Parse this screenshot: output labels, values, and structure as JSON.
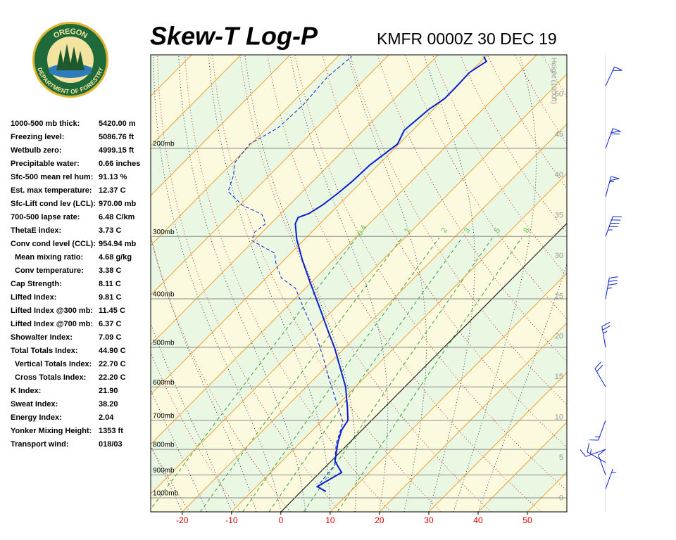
{
  "logo": {
    "top": "OREGON",
    "bottom": "DEPARTMENT OF FORESTRY"
  },
  "indices": [
    {
      "label": "1000-500 mb thick:",
      "value": "5420.00 m"
    },
    {
      "label": "Freezing level:",
      "value": "5086.76 ft"
    },
    {
      "label": "Wetbulb zero:",
      "value": "4999.15 ft"
    },
    {
      "label": "Precipitable water:",
      "value": "0.66 inches"
    },
    {
      "label": "Sfc-500 mean rel hum:",
      "value": "91.13 %"
    },
    {
      "label": "Est. max temperature:",
      "value": "12.37 C"
    },
    {
      "label": "Sfc-Lift cond lev (LCL):",
      "value": "970.00 mb"
    },
    {
      "label": "700-500 lapse rate:",
      "value": "6.48 C/km"
    },
    {
      "label": "ThetaE index:",
      "value": "3.73 C"
    },
    {
      "label": "Conv cond level (CCL):",
      "value": "954.94 mb",
      "sub": [
        {
          "label": "Mean mixing ratio:",
          "value": "4.68 g/kg"
        },
        {
          "label": "Conv temperature:",
          "value": "3.38 C"
        }
      ]
    },
    {
      "label": "Cap Strength:",
      "value": "8.11 C"
    },
    {
      "label": "Lifted Index:",
      "value": "9.81 C"
    },
    {
      "label": "Lifted Index @300 mb:",
      "value": "11.45 C"
    },
    {
      "label": "Lifted Index @700 mb:",
      "value": "6.37 C"
    },
    {
      "label": "Showalter Index:",
      "value": "7.09 C"
    },
    {
      "label": "Total Totals Index:",
      "value": "44.90 C",
      "sub": [
        {
          "label": "Vertical Totals Index:",
          "value": "22.70 C"
        },
        {
          "label": "Cross Totals Index:",
          "value": "22.20 C"
        }
      ]
    },
    {
      "label": "K Index:",
      "value": "21.90"
    },
    {
      "label": "Sweat Index:",
      "value": "38.20"
    },
    {
      "label": "Energy Index:",
      "value": "2.04"
    },
    {
      "label": "Yonker Mixing Height:",
      "value": "1353 ft"
    },
    {
      "label": "Transport wind:",
      "value": "018/03"
    }
  ],
  "chart_data": {
    "type": "skewt",
    "title": "Skew-T Log-P",
    "subtitle": "KMFR 0000Z 30 DEC 19",
    "xlim": [
      -26.4,
      58
    ],
    "xticks": [
      -20,
      -10,
      0,
      10,
      20,
      30,
      40,
      50
    ],
    "ylim": [
      1067,
      130
    ],
    "yticks": [
      {
        "value": 200,
        "label": "200mb"
      },
      {
        "value": 300,
        "label": "300mb"
      },
      {
        "value": 400,
        "label": "400mb"
      },
      {
        "value": 500,
        "label": "500mb"
      },
      {
        "value": 600,
        "label": "600mb"
      },
      {
        "value": 700,
        "label": "700mb"
      },
      {
        "value": 800,
        "label": "800mb"
      },
      {
        "value": 900,
        "label": "900mb"
      },
      {
        "value": 1000,
        "label": "1000mb"
      }
    ],
    "y2label": "Height (1000ft)",
    "y2lim": [
      -1.7,
      54.9
    ],
    "y2ticks": [
      0,
      5,
      10,
      15,
      20,
      25,
      30,
      35,
      40,
      45,
      50
    ],
    "mixing_ratios": [
      0.4,
      1,
      2,
      3,
      5,
      8
    ],
    "profiles": [
      {
        "color": "#0a1fd0",
        "dashed": false,
        "pressure": [
          971,
          950,
          940,
          890,
          845,
          777,
          733,
          700,
          661,
          600,
          502,
          463,
          420,
          369,
          335,
          304,
          283,
          275,
          270,
          259,
          246,
          233,
          216,
          196,
          184,
          167,
          159,
          151,
          141,
          134,
          131
        ],
        "temperature": [
          5.0,
          2.3,
          2.6,
          4.4,
          0.8,
          -2.3,
          -4.1,
          -4.8,
          -7.4,
          -12.0,
          -22.0,
          -26.9,
          -32.7,
          -40.5,
          -46.2,
          -51.6,
          -55.0,
          -55.7,
          -54.3,
          -53.2,
          -52.5,
          -52.0,
          -51.7,
          -50.3,
          -51.7,
          -50.9,
          -49.9,
          -49.9,
          -50.1,
          -48.9,
          -50.4
        ]
      },
      {
        "color": "#0a1fd0",
        "dashed": true,
        "pressure": [
          965,
          950,
          862,
          777,
          728,
          705,
          640,
          581,
          518,
          478,
          413,
          381,
          363,
          340,
          324,
          306,
          294,
          283,
          271,
          260,
          244,
          227,
          213,
          196,
          182,
          164,
          144,
          131
        ],
        "temperature": [
          4.2,
          2.3,
          1.5,
          -2.6,
          -4.5,
          -5.5,
          -11.1,
          -16.7,
          -23.1,
          -27.8,
          -37.0,
          -42.0,
          -47.0,
          -50.9,
          -53.3,
          -60.4,
          -61.6,
          -61.0,
          -63.7,
          -69.4,
          -75.1,
          -77.2,
          -79.6,
          -80.3,
          -77.8,
          -77.3,
          -78.0,
          -77.2
        ]
      }
    ],
    "winds": {
      "color": "#0a1fd0",
      "pressure": [
        960,
        900,
        850,
        800,
        700,
        600,
        500,
        400,
        300,
        250,
        200,
        150
      ],
      "direction": [
        20,
        340,
        300,
        250,
        200,
        330,
        350,
        10,
        20,
        15,
        20,
        25
      ],
      "speed": [
        5,
        10,
        15,
        10,
        15,
        20,
        25,
        35,
        45,
        55,
        60,
        50
      ]
    }
  }
}
